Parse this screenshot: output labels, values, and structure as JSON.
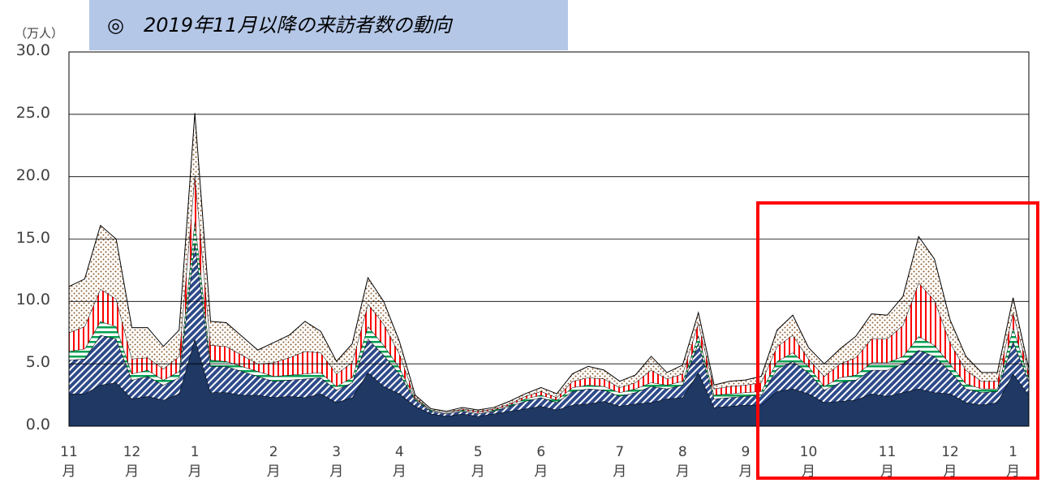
{
  "chart_data": {
    "type": "stacked_area",
    "title": "◎　2019年11月以降の来訪者数の動向",
    "y_unit": "（万人）",
    "categories": [
      "11\n月",
      null,
      null,
      null,
      "12\n月",
      null,
      null,
      null,
      "1\n月",
      null,
      null,
      null,
      null,
      "2\n月",
      null,
      null,
      null,
      "3\n月",
      null,
      null,
      null,
      "4\n月",
      null,
      null,
      null,
      null,
      "5\n月",
      null,
      null,
      null,
      "6\n月",
      null,
      null,
      null,
      null,
      "7\n月",
      null,
      null,
      null,
      "8\n月",
      null,
      null,
      null,
      "9\n月",
      null,
      null,
      null,
      "10\n月",
      null,
      null,
      null,
      null,
      "11\n月",
      null,
      null,
      null,
      "12\n月",
      null,
      null,
      null,
      "1\n月",
      null
    ],
    "series": [
      {
        "color": "#1f3864",
        "fill": "solid",
        "values": [
          2.6,
          2.6,
          3.3,
          3.5,
          2.2,
          2.4,
          2.1,
          2.6,
          7.0,
          2.7,
          2.7,
          2.5,
          2.5,
          2.3,
          2.4,
          2.3,
          2.6,
          1.9,
          2.3,
          4.3,
          3.2,
          2.6,
          1.6,
          1.0,
          0.8,
          1.0,
          0.8,
          1.0,
          1.2,
          1.4,
          1.6,
          1.3,
          1.7,
          1.8,
          2.0,
          1.6,
          1.8,
          1.9,
          2.2,
          2.3,
          4.3,
          1.5,
          1.6,
          1.7,
          1.7,
          2.8,
          3.0,
          2.6,
          1.9,
          2.0,
          2.1,
          2.6,
          2.4,
          2.7,
          3.0,
          2.7,
          2.6,
          1.9,
          1.7,
          1.9,
          4.2,
          2.5
        ]
      },
      {
        "color": "#2e4a8a",
        "fill": "diagonal",
        "values": [
          2.7,
          2.8,
          4.0,
          3.5,
          1.5,
          1.6,
          1.2,
          1.3,
          7.8,
          2.1,
          2.1,
          1.9,
          1.5,
          1.3,
          1.3,
          1.5,
          1.3,
          1.0,
          1.2,
          2.7,
          2.5,
          1.6,
          0.5,
          0.2,
          0.2,
          0.2,
          0.2,
          0.2,
          0.4,
          0.6,
          0.7,
          0.6,
          1.1,
          1.2,
          0.9,
          0.8,
          0.9,
          1.3,
          0.8,
          1.0,
          2.4,
          0.7,
          0.7,
          0.7,
          0.8,
          1.8,
          2.2,
          1.7,
          1.0,
          1.5,
          1.6,
          1.9,
          2.1,
          2.3,
          3.1,
          2.9,
          1.8,
          1.1,
          1.0,
          0.9,
          2.6,
          1.1
        ]
      },
      {
        "color": "#00a050",
        "fill": "horizontal",
        "values": [
          0.7,
          0.8,
          1.1,
          1.0,
          0.5,
          0.5,
          0.4,
          0.5,
          1.7,
          0.5,
          0.4,
          0.4,
          0.4,
          0.4,
          0.4,
          0.4,
          0.4,
          0.3,
          0.4,
          1.0,
          0.8,
          0.5,
          0.1,
          0.1,
          0.1,
          0.1,
          0.1,
          0.1,
          0.1,
          0.2,
          0.2,
          0.2,
          0.3,
          0.3,
          0.3,
          0.3,
          0.3,
          0.3,
          0.3,
          0.3,
          0.6,
          0.3,
          0.3,
          0.3,
          0.3,
          0.6,
          0.7,
          0.5,
          0.3,
          0.4,
          0.4,
          0.6,
          0.6,
          0.6,
          1.1,
          0.9,
          0.6,
          0.4,
          0.3,
          0.2,
          1.1,
          0.3
        ]
      },
      {
        "color": "#ff0000",
        "fill": "vertical",
        "values": [
          1.5,
          1.8,
          2.6,
          2.2,
          1.2,
          1.0,
          0.9,
          1.2,
          3.7,
          1.2,
          1.2,
          0.9,
          0.6,
          1.1,
          1.4,
          1.8,
          1.6,
          1.0,
          1.2,
          1.8,
          1.7,
          1.1,
          0.1,
          0.0,
          0.0,
          0.1,
          0.1,
          0.1,
          0.1,
          0.2,
          0.3,
          0.2,
          0.5,
          0.6,
          0.6,
          0.4,
          0.5,
          1.0,
          0.5,
          0.6,
          1.0,
          0.5,
          0.6,
          0.6,
          0.7,
          1.2,
          1.4,
          0.6,
          0.8,
          1.1,
          1.4,
          1.9,
          1.9,
          2.5,
          4.3,
          3.6,
          1.7,
          1.1,
          0.6,
          0.6,
          1.2,
          0.4
        ]
      },
      {
        "color": "#8b5a2b",
        "fill": "dots",
        "values": [
          3.7,
          3.8,
          5.1,
          4.8,
          2.5,
          2.4,
          1.8,
          2.1,
          4.9,
          1.9,
          1.9,
          1.5,
          1.1,
          1.6,
          1.8,
          2.4,
          1.7,
          1.0,
          1.5,
          2.1,
          1.8,
          1.0,
          0.2,
          0.1,
          0.1,
          0.1,
          0.1,
          0.1,
          0.2,
          0.2,
          0.3,
          0.3,
          0.6,
          0.9,
          0.7,
          0.5,
          0.6,
          1.1,
          0.5,
          0.7,
          0.8,
          0.3,
          0.4,
          0.4,
          0.5,
          1.3,
          1.6,
          0.9,
          1.0,
          1.2,
          1.7,
          2.0,
          1.9,
          2.3,
          3.7,
          3.3,
          1.8,
          1.1,
          0.7,
          0.7,
          1.2,
          0.3
        ]
      }
    ],
    "ylim": [
      0,
      30
    ],
    "yticks": [
      {
        "value": 0,
        "label": "0.0"
      },
      {
        "value": 5,
        "label": "5.0"
      },
      {
        "value": 10,
        "label": "10.0"
      },
      {
        "value": 15,
        "label": "15.0"
      },
      {
        "value": 20,
        "label": "20.0"
      },
      {
        "value": 25,
        "label": "25.0"
      },
      {
        "value": 30,
        "label": "30.0"
      }
    ],
    "grid": true
  }
}
